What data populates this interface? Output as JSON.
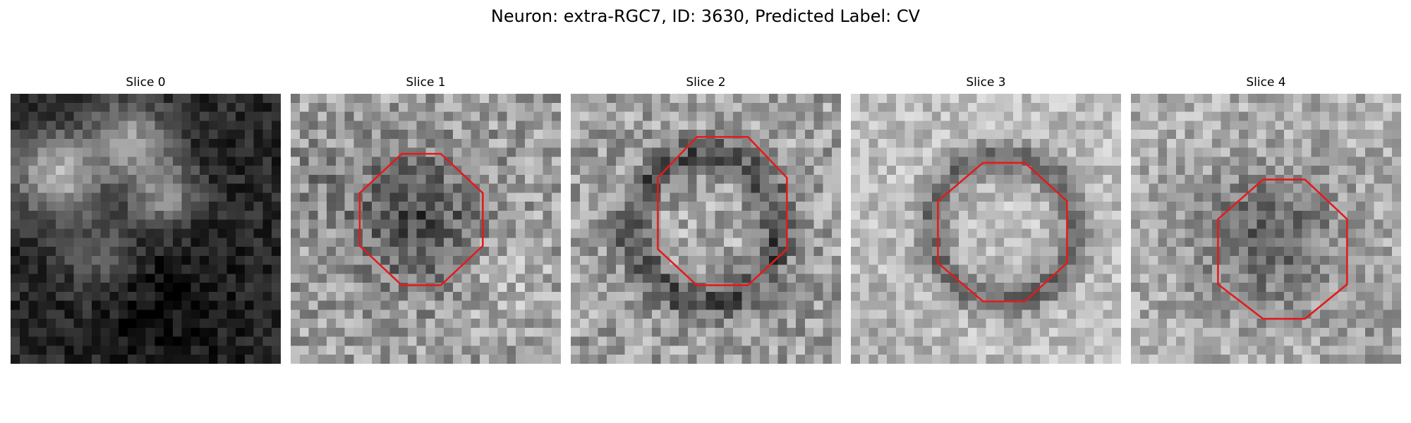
{
  "figure": {
    "title": "Neuron: extra-RGC7, ID: 3630, Predicted Label: CV"
  },
  "slices": [
    {
      "title": "Slice 0",
      "has_roi": false,
      "pattern": "blobs_left"
    },
    {
      "title": "Slice 1",
      "has_roi": true,
      "pattern": "dark_center"
    },
    {
      "title": "Slice 2",
      "has_roi": true,
      "pattern": "dark_ring"
    },
    {
      "title": "Slice 3",
      "has_roi": true,
      "pattern": "dark_ring_bright_surround"
    },
    {
      "title": "Slice 4",
      "has_roi": true,
      "pattern": "dark_center_light"
    }
  ],
  "roi_color": "#e41a1c",
  "colormap": "gray"
}
